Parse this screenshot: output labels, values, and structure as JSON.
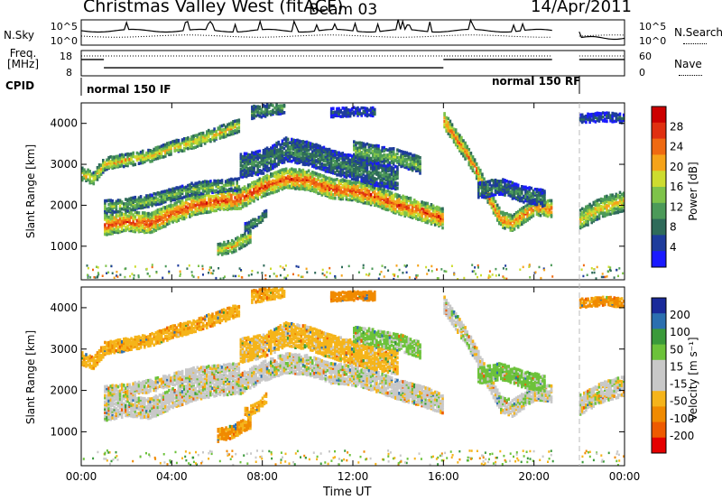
{
  "header": {
    "site": "Christmas Valley West (fitACF)",
    "beam": "Beam 03",
    "date": "14/Apr/2011"
  },
  "side_labels": {
    "nsky": "N.Sky",
    "nsearch": "N.Search",
    "freq": "Freq.",
    "freq_unit": "[MHz]",
    "nave": "Nave",
    "cpid": "CPID"
  },
  "cpid_segments": [
    "normal 150 IF",
    "normal 150 RF"
  ],
  "colors": {
    "power": [
      "#1a1aff",
      "#1e3c9c",
      "#2f6b5a",
      "#4c9a59",
      "#7ec34a",
      "#cddc2f",
      "#f5a31a",
      "#ef6a12",
      "#e03010",
      "#cc0000"
    ],
    "velocity": [
      "#e50000",
      "#ee5a00",
      "#f08a00",
      "#f5b41a",
      "#c8c8c8",
      "#c8c8c8",
      "#6cc23a",
      "#3a9a3a",
      "#2b6fb0",
      "#1a2a9a"
    ],
    "panel_bg": "#ffffff"
  },
  "chart_data": [
    {
      "type": "line",
      "name": "noise-panel",
      "left_axis": {
        "title": "N.Sky",
        "ticks": [
          "10^5",
          "10^0"
        ]
      },
      "right_axis": {
        "title": "N.Search",
        "ticks": [
          "10^5",
          "10^0"
        ]
      },
      "x": [
        "00:00",
        "04:00",
        "08:00",
        "12:00",
        "16:00",
        "20:00",
        "00:00"
      ]
    },
    {
      "type": "line",
      "name": "freq-panel",
      "left_axis": {
        "title": "Freq. [MHz]",
        "ticks": [
          "18",
          "8"
        ]
      },
      "right_axis": {
        "title": "Nave",
        "ticks": [
          "60",
          "0"
        ]
      },
      "steps": [
        {
          "start": 0.0,
          "end": 1.0,
          "freq": 15.0
        },
        {
          "start": 1.0,
          "end": 16.0,
          "freq": 11.0
        },
        {
          "start": 16.0,
          "end": 20.8,
          "freq": 15.0
        },
        {
          "start": 22.0,
          "end": 24.0,
          "freq": 15.0
        }
      ],
      "cpid": [
        "normal 150 IF",
        "normal 150 RF"
      ]
    },
    {
      "type": "heatmap",
      "name": "power",
      "ylabel": "Slant Range [km]",
      "yticks": [
        1000,
        2000,
        3000,
        4000
      ],
      "ylim": [
        180,
        4500
      ],
      "xticks": [
        "00:00",
        "04:00",
        "08:00",
        "12:00",
        "16:00",
        "20:00",
        "00:00"
      ],
      "xlim": [
        0,
        24
      ],
      "colorbar": {
        "label": "Power [dB]",
        "ticks": [
          4,
          8,
          12,
          16,
          20,
          24,
          28
        ]
      },
      "bands": [
        {
          "t": [
            0.0,
            0.5,
            1.0,
            2.0,
            3.0,
            4.0,
            5.0,
            6.0,
            7.0
          ],
          "r": [
            2800,
            2700,
            3050,
            3150,
            3250,
            3450,
            3600,
            3800,
            4000
          ],
          "w": 150,
          "p": 20
        },
        {
          "t": [
            1.0,
            2.0,
            3.0,
            4.0,
            5.0,
            6.0,
            7.0,
            8.0,
            9.0,
            10.0,
            11.0,
            12.0,
            13.0,
            14.0,
            15.0,
            16.0
          ],
          "r": [
            1550,
            1650,
            1600,
            1850,
            2050,
            2150,
            2200,
            2500,
            2700,
            2650,
            2450,
            2400,
            2250,
            2050,
            1900,
            1700
          ],
          "w": 230,
          "p": 26
        },
        {
          "t": [
            1.0,
            2.0,
            3.0,
            4.0,
            5.0,
            6.0,
            7.0
          ],
          "r": [
            2000,
            2050,
            2150,
            2300,
            2450,
            2500,
            2550
          ],
          "w": 130,
          "p": 14
        },
        {
          "t": [
            6.0,
            6.7,
            7.5
          ],
          "r": [
            950,
            1050,
            1300
          ],
          "w": 120,
          "p": 20
        },
        {
          "t": [
            7.2,
            7.8,
            8.2
          ],
          "r": [
            1500,
            1650,
            1900
          ],
          "w": 110,
          "p": 12
        },
        {
          "t": [
            7.0,
            8.0,
            9.0,
            10.0,
            11.0,
            12.0,
            13.0,
            14.0
          ],
          "r": [
            3000,
            3100,
            3400,
            3300,
            3100,
            2950,
            2800,
            2700
          ],
          "w": 260,
          "p": 10
        },
        {
          "t": [
            12.0,
            13.0,
            14.0,
            15.0
          ],
          "r": [
            3400,
            3300,
            3200,
            3000
          ],
          "w": 180,
          "p": 14
        },
        {
          "t": [
            16.0,
            16.5,
            17.0,
            17.5,
            18.0,
            18.5,
            19.0,
            20.0,
            20.8
          ],
          "r": [
            4100,
            3700,
            3300,
            2800,
            2200,
            1700,
            1600,
            2000,
            1950
          ],
          "w": 180,
          "p": 24
        },
        {
          "t": [
            17.5,
            18.5,
            19.5,
            20.5
          ],
          "r": [
            2400,
            2500,
            2300,
            2200
          ],
          "w": 180,
          "p": 10
        },
        {
          "t": [
            22.0,
            22.5,
            23.0,
            24.0
          ],
          "r": [
            1700,
            1850,
            2000,
            2150
          ],
          "w": 220,
          "p": 20
        },
        {
          "t": [
            22.0,
            23.0,
            24.0
          ],
          "r": [
            4150,
            4200,
            4150
          ],
          "w": 100,
          "p": 6
        },
        {
          "t": [
            7.5,
            8.5,
            9.0
          ],
          "r": [
            4300,
            4400,
            4450
          ],
          "w": 140,
          "p": 12
        },
        {
          "t": [
            11.0,
            12.0,
            13.0
          ],
          "r": [
            4300,
            4320,
            4320
          ],
          "w": 70,
          "p": 6
        }
      ]
    },
    {
      "type": "heatmap",
      "name": "velocity",
      "ylabel": "Slant Range [km]",
      "yticks": [
        1000,
        2000,
        3000,
        4000
      ],
      "ylim": [
        180,
        4500
      ],
      "xticks": [
        "00:00",
        "04:00",
        "08:00",
        "12:00",
        "16:00",
        "20:00",
        "00:00"
      ],
      "xlim": [
        0,
        24
      ],
      "xlabel": "Time UT",
      "colorbar": {
        "label": "Velocity [m s⁻¹]",
        "ticks": [
          200,
          100,
          50,
          15,
          -15,
          -50,
          -100,
          -200
        ]
      },
      "bands": [
        {
          "t": [
            0.0,
            0.5,
            1.0,
            2.0,
            3.0,
            4.0,
            5.0,
            6.0,
            7.0
          ],
          "r": [
            2800,
            2700,
            3050,
            3150,
            3250,
            3450,
            3600,
            3800,
            4000
          ],
          "w": 150,
          "v": -40
        },
        {
          "t": [
            1.0,
            2.0,
            3.0,
            4.0,
            5.0,
            6.0,
            7.0,
            8.0,
            9.0,
            10.0,
            11.0,
            12.0,
            13.0,
            14.0,
            15.0,
            16.0
          ],
          "r": [
            1550,
            1650,
            1600,
            1850,
            2050,
            2150,
            2200,
            2500,
            2700,
            2650,
            2450,
            2400,
            2250,
            2050,
            1900,
            1700
          ],
          "w": 230,
          "v": 0
        },
        {
          "t": [
            1.0,
            2.0,
            3.0,
            4.0,
            5.0,
            6.0,
            7.0
          ],
          "r": [
            2000,
            2050,
            2150,
            2300,
            2450,
            2500,
            2550
          ],
          "w": 130,
          "v": 0
        },
        {
          "t": [
            6.0,
            6.7,
            7.5
          ],
          "r": [
            950,
            1050,
            1300
          ],
          "w": 120,
          "v": -60
        },
        {
          "t": [
            7.2,
            7.8,
            8.2
          ],
          "r": [
            1500,
            1650,
            1900
          ],
          "w": 110,
          "v": -40
        },
        {
          "t": [
            7.0,
            8.0,
            9.0,
            10.0,
            11.0,
            12.0,
            13.0,
            14.0
          ],
          "r": [
            3000,
            3100,
            3400,
            3300,
            3100,
            2950,
            2800,
            2700
          ],
          "w": 260,
          "v": -30
        },
        {
          "t": [
            12.0,
            13.0,
            14.0,
            15.0
          ],
          "r": [
            3400,
            3300,
            3200,
            3000
          ],
          "w": 180,
          "v": 25
        },
        {
          "t": [
            16.0,
            16.5,
            17.0,
            17.5,
            18.0,
            18.5,
            19.0,
            20.0,
            20.8
          ],
          "r": [
            4100,
            3700,
            3300,
            2800,
            2200,
            1700,
            1600,
            2000,
            1950
          ],
          "w": 180,
          "v": 0
        },
        {
          "t": [
            17.5,
            18.5,
            19.5,
            20.5
          ],
          "r": [
            2400,
            2500,
            2300,
            2200
          ],
          "w": 180,
          "v": 30
        },
        {
          "t": [
            22.0,
            22.5,
            23.0,
            24.0
          ],
          "r": [
            1700,
            1850,
            2000,
            2150
          ],
          "w": 220,
          "v": 0
        },
        {
          "t": [
            22.0,
            23.0,
            24.0
          ],
          "r": [
            4150,
            4200,
            4150
          ],
          "w": 100,
          "v": -60
        },
        {
          "t": [
            7.5,
            8.5,
            9.0
          ],
          "r": [
            4300,
            4400,
            4450
          ],
          "w": 140,
          "v": -40
        },
        {
          "t": [
            11.0,
            12.0,
            13.0
          ],
          "r": [
            4300,
            4320,
            4320
          ],
          "w": 70,
          "v": -80
        }
      ]
    }
  ]
}
